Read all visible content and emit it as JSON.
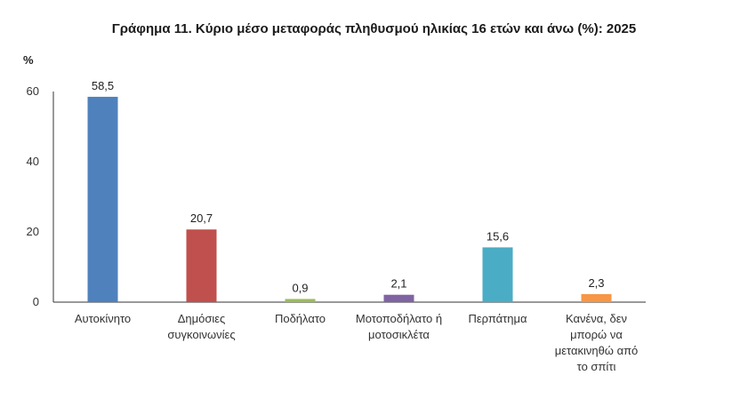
{
  "chart_data": {
    "type": "bar",
    "title": "Γράφημα 11. Κύριο μέσο μεταφοράς πληθυσμού ηλικίας 16 ετών και άνω (%): 2025",
    "ylabel": "%",
    "xlabel": "",
    "ylim": [
      0,
      60
    ],
    "yticks": [
      "0",
      "20",
      "40",
      "60"
    ],
    "grid": false,
    "legend": "none",
    "categories": [
      [
        "Αυτοκίνητο"
      ],
      [
        "Δημόσιες",
        "συγκοινωνίες"
      ],
      [
        "Ποδήλατο"
      ],
      [
        "Μοτοποδήλατο ή",
        "μοτοσικλέτα"
      ],
      [
        "Περπάτημα"
      ],
      [
        "Κανένα, δεν",
        "μπορώ να",
        "μετακινηθώ από",
        "το σπίτι"
      ]
    ],
    "values": [
      58.5,
      20.7,
      0.9,
      2.1,
      15.6,
      2.3
    ],
    "value_labels": [
      "58,5",
      "20,7",
      "0,9",
      "2,1",
      "15,6",
      "2,3"
    ],
    "colors": [
      "#4f81bd",
      "#c0504d",
      "#9bbb59",
      "#8064a2",
      "#4bacc6",
      "#f79646"
    ]
  }
}
